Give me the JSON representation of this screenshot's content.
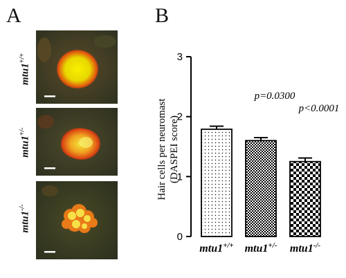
{
  "panel_a": {
    "letter": "A",
    "rows": [
      {
        "genotype": "mtu1",
        "superscript": "+/+"
      },
      {
        "genotype": "mtu1",
        "superscript": "+/-"
      },
      {
        "genotype": "mtu1",
        "superscript": "-/-"
      }
    ]
  },
  "panel_b": {
    "letter": "B"
  },
  "colors": {
    "axis": "#000000",
    "bar_stroke": "#000000",
    "bar_bg": "#ffffff",
    "micro_bg": "#3a3a22"
  },
  "chart_data": {
    "type": "bar",
    "ylabel_line1": "Hair cells per neuromast",
    "ylabel_line2": "(DASPEI score)",
    "ylim": [
      0,
      3
    ],
    "yticks": [
      "0",
      "1",
      "2",
      "3"
    ],
    "categories": [
      {
        "name": "mtu1",
        "sup": "+/+"
      },
      {
        "name": "mtu1",
        "sup": "+/-"
      },
      {
        "name": "mtu1",
        "sup": "-/-"
      }
    ],
    "values": [
      1.79,
      1.6,
      1.25
    ],
    "errors": [
      0.05,
      0.05,
      0.06
    ],
    "patterns": [
      "dots-sparse",
      "checker-small",
      "checker-large"
    ],
    "annotations": [
      "",
      "p=0.0300",
      "p<0.0001"
    ],
    "grid": false
  }
}
